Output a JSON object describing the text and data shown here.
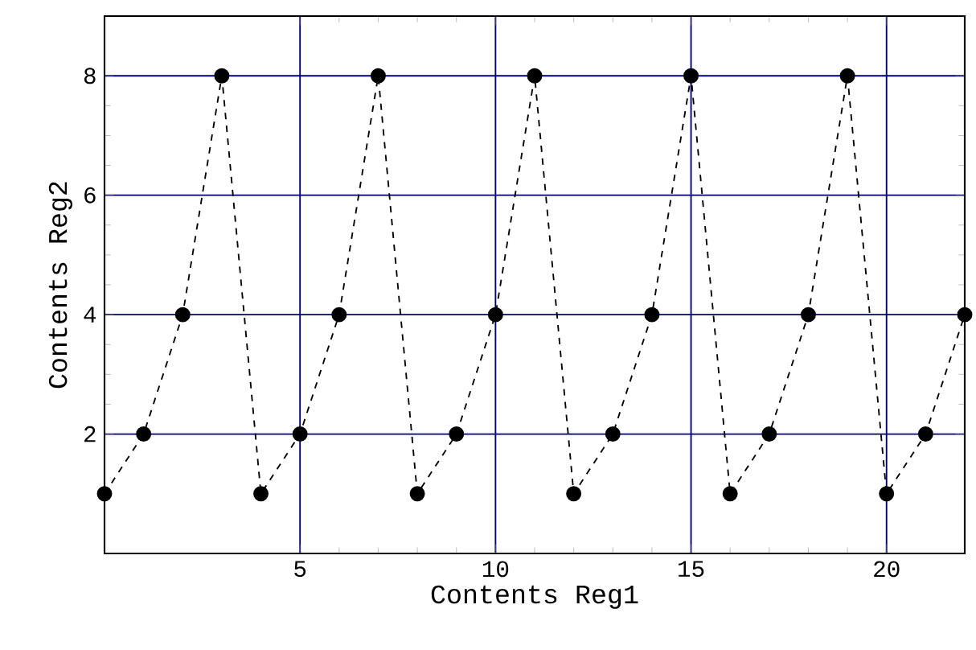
{
  "chart_data": {
    "type": "line",
    "xlabel": "Contents Reg1",
    "ylabel": "Contents Reg2",
    "x": [
      0,
      1,
      2,
      3,
      4,
      5,
      6,
      7,
      8,
      9,
      10,
      11,
      12,
      13,
      14,
      15,
      16,
      17,
      18,
      19,
      20,
      21,
      22
    ],
    "series": [
      {
        "color": "#000000",
        "values": [
          1,
          2,
          4,
          8,
          1,
          2,
          4,
          8,
          1,
          2,
          4,
          8,
          1,
          2,
          4,
          8,
          1,
          2,
          4,
          8,
          1,
          2,
          4
        ]
      }
    ],
    "xlim": [
      0,
      22
    ],
    "ylim": [
      0,
      9
    ],
    "xticks": [
      5,
      10,
      15,
      20
    ],
    "yticks": [
      2,
      4,
      6,
      8
    ],
    "grid": true,
    "marker": "circle",
    "line_style": "dashed"
  }
}
